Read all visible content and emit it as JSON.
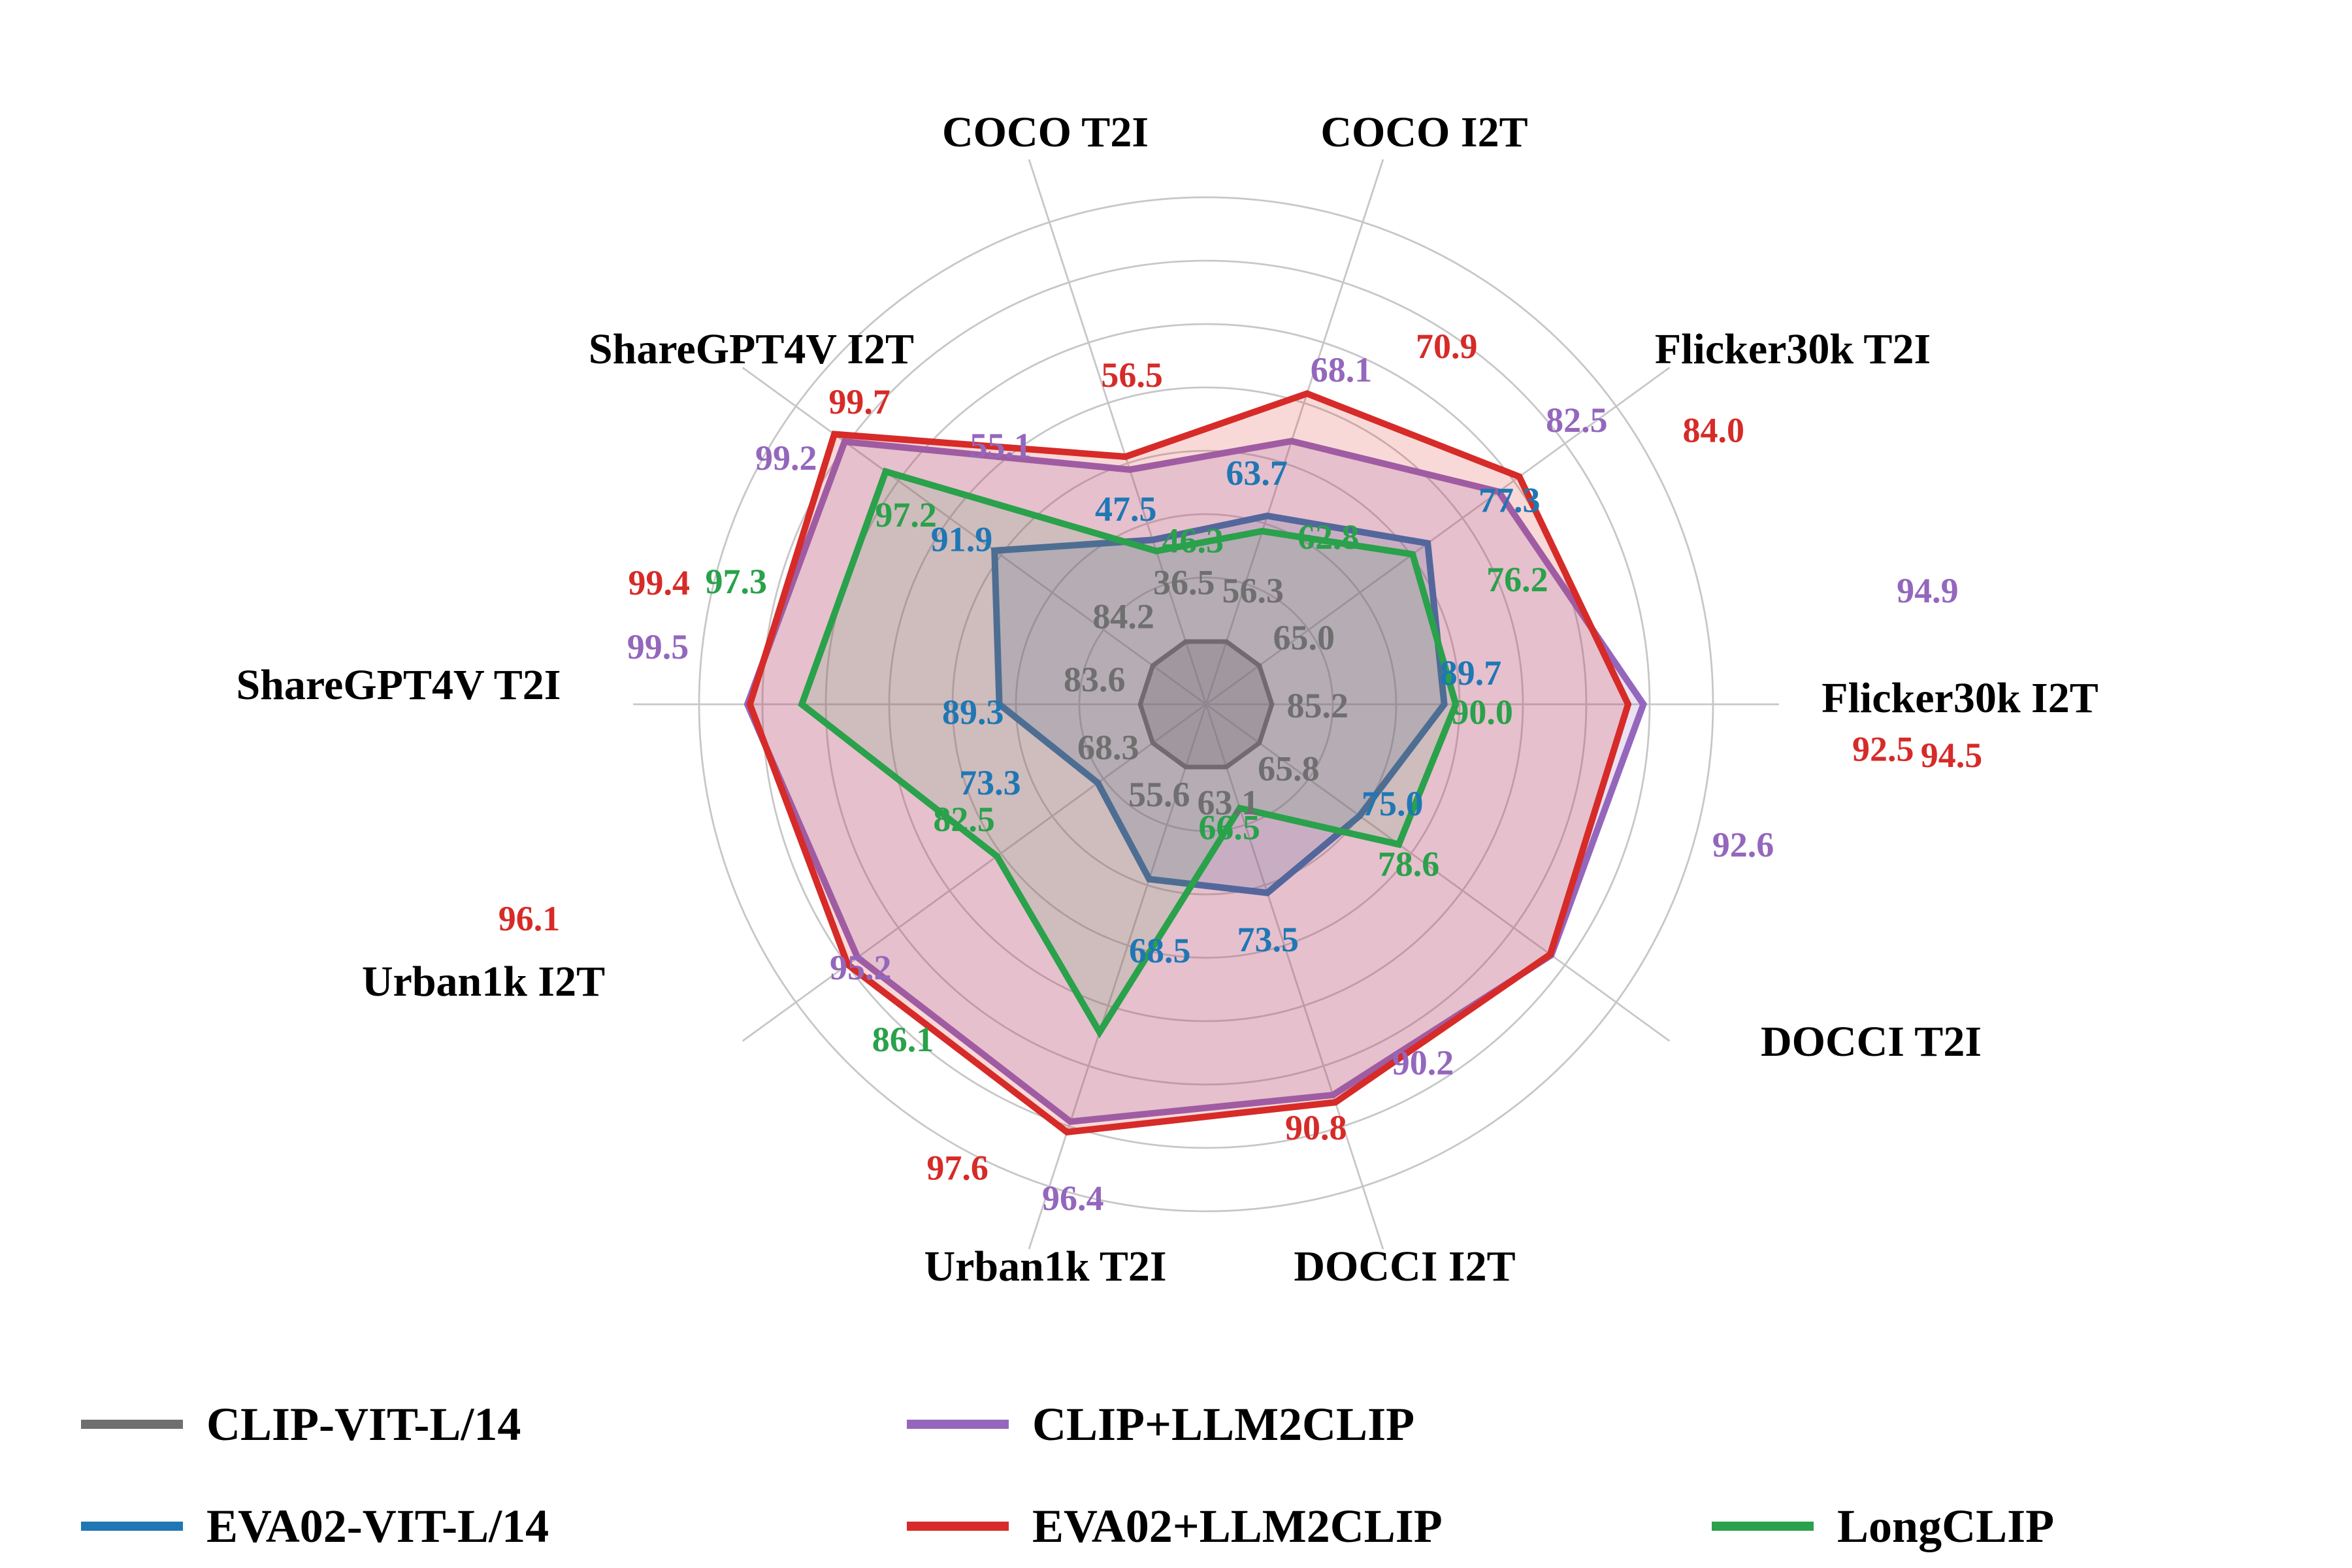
{
  "figure": {
    "background": "#ffffff"
  },
  "chart_data": {
    "type": "radar",
    "title": "",
    "axes": [
      "COCO T2I",
      "COCO I2T",
      "Flicker30k T2I",
      "Flicker30k I2T",
      "DOCCI T2I",
      "DOCCI I2T",
      "Urban1k T2I",
      "Urban1k I2T",
      "ShareGPT4V T2I",
      "ShareGPT4V I2T"
    ],
    "series": [
      {
        "name": "CLIP-VIT-L/14",
        "color": "#6f6f6f",
        "values": [
          36.5,
          56.3,
          65.0,
          85.2,
          65.8,
          63.1,
          55.6,
          68.3,
          83.6,
          84.2
        ]
      },
      {
        "name": "EVA02-VIT-L/14",
        "color": "#1f77b4",
        "values": [
          47.5,
          63.7,
          77.3,
          89.7,
          75.0,
          73.5,
          68.5,
          73.3,
          89.3,
          91.9
        ]
      },
      {
        "name": "CLIP+LLM2CLIP",
        "color": "#9467bd",
        "values": [
          55.1,
          68.1,
          82.5,
          94.9,
          92.6,
          90.2,
          96.4,
          95.2,
          99.5,
          99.2
        ]
      },
      {
        "name": "EVA02+LLM2CLIP",
        "color": "#d62b28",
        "values": [
          56.5,
          70.9,
          84.0,
          94.5,
          92.5,
          90.8,
          97.6,
          96.1,
          99.4,
          99.7
        ]
      },
      {
        "name": "LongCLIP",
        "color": "#2aa14b",
        "values": [
          46.3,
          62.8,
          76.2,
          90.0,
          78.6,
          66.5,
          86.1,
          82.5,
          97.3,
          97.2
        ]
      }
    ],
    "value_labels_shown": true,
    "value_format_decimals": 1,
    "grid": true,
    "grid_rings": 8,
    "legend_position": "bottom",
    "axis_normalization": "per-axis: min value at inner radius, max value scaled by max/110 of outer radius"
  }
}
